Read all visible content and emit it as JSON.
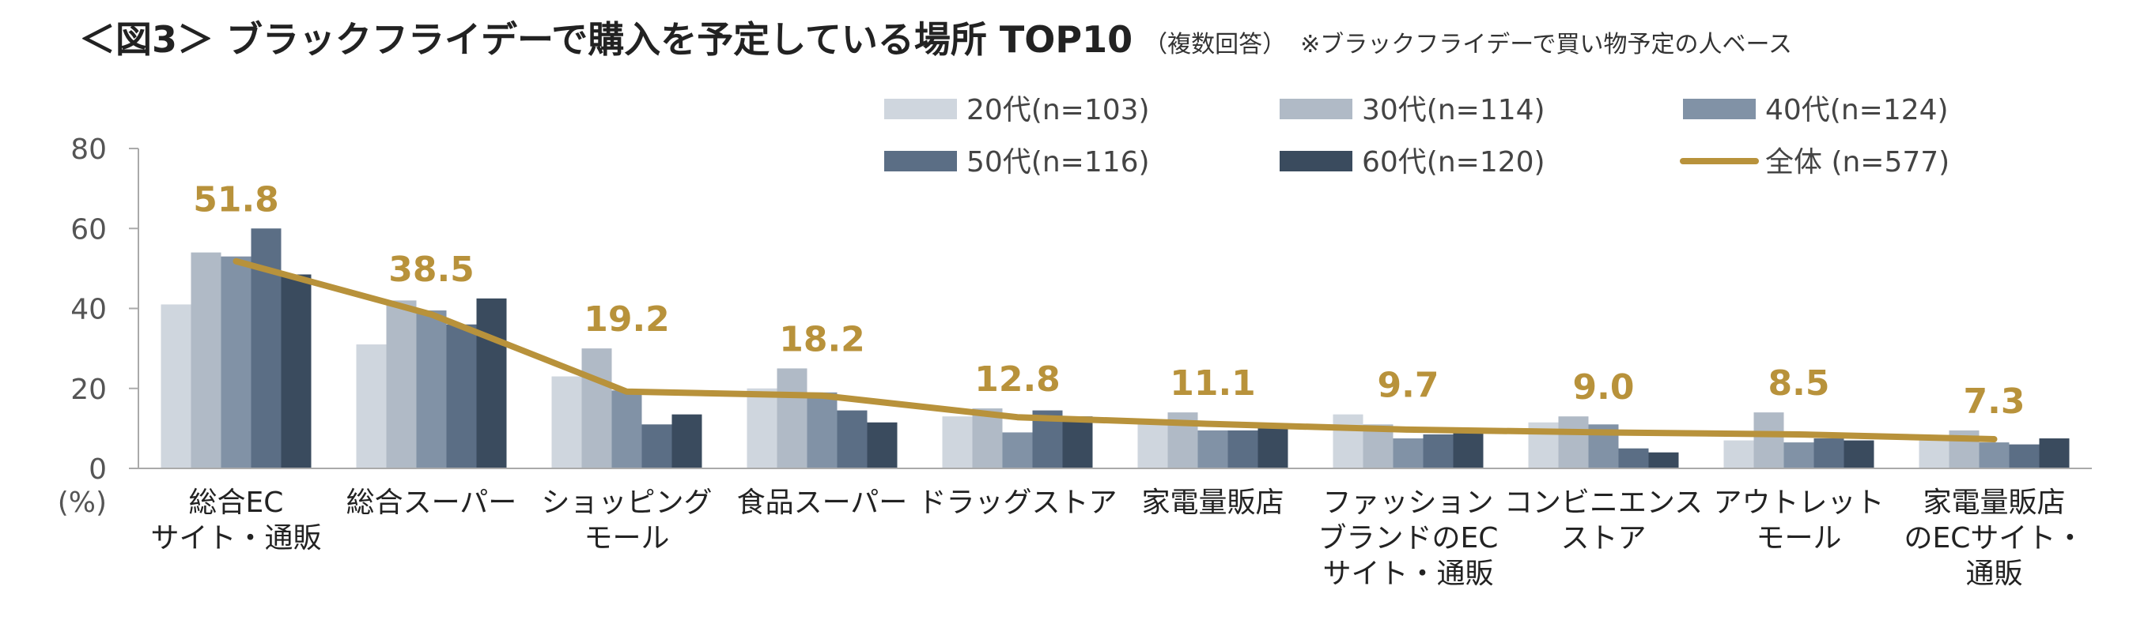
{
  "title": {
    "main": "＜図3＞ ブラックフライデーで購入を予定している場所 TOP10",
    "sub": "（複数回答）",
    "note": "※ブラックフライデーで買い物予定の人ベース"
  },
  "colors": {
    "s20": "#CFD6DE",
    "s30": "#B0BAC6",
    "s40": "#8192A6",
    "s50": "#5B6E85",
    "s60": "#3A4B5E",
    "total": "#B8923B",
    "axis": "#AAAAAA"
  },
  "chart_data": {
    "type": "bar",
    "unit_label": "(%)",
    "ylim": [
      0,
      80
    ],
    "yticks": [
      0,
      20,
      40,
      60,
      80
    ],
    "grid": false,
    "legend_position": "top-right",
    "categories": [
      [
        "総合EC",
        "サイト・通販"
      ],
      [
        "総合スーパー"
      ],
      [
        "ショッピング",
        "モール"
      ],
      [
        "食品スーパー"
      ],
      [
        "ドラッグストア"
      ],
      [
        "家電量販店"
      ],
      [
        "ファッション",
        "ブランドのEC",
        "サイト・通販"
      ],
      [
        "コンビニエンス",
        "ストア"
      ],
      [
        "アウトレット",
        "モール"
      ],
      [
        "家電量販店",
        "のECサイト・",
        "通販"
      ]
    ],
    "series": [
      {
        "name": "20代(n=103)",
        "color_key": "s20",
        "values": [
          41,
          31,
          23,
          20,
          13,
          11,
          13.5,
          11.5,
          7,
          7
        ]
      },
      {
        "name": "30代(n=114)",
        "color_key": "s30",
        "values": [
          54,
          42,
          30,
          25,
          15,
          14,
          11,
          13,
          14,
          9.5
        ]
      },
      {
        "name": "40代(n=124)",
        "color_key": "s40",
        "values": [
          53,
          39.5,
          19.5,
          19,
          9,
          9.5,
          7.5,
          11,
          6.5,
          6.5
        ]
      },
      {
        "name": "50代(n=116)",
        "color_key": "s50",
        "values": [
          60,
          36,
          11,
          14.5,
          14.5,
          9.5,
          8.5,
          5,
          7.5,
          6
        ]
      },
      {
        "name": "60代(n=120)",
        "color_key": "s60",
        "values": [
          48.5,
          42.5,
          13.5,
          11.5,
          13,
          10,
          9,
          4,
          7,
          7.5
        ]
      }
    ],
    "line": {
      "name": "全体 (n=577)",
      "color_key": "total",
      "values": [
        51.8,
        38.5,
        19.2,
        18.2,
        12.8,
        11.1,
        9.7,
        9.0,
        8.5,
        7.3
      ],
      "labels": [
        "51.8",
        "38.5",
        "19.2",
        "18.2",
        "12.8",
        "11.1",
        "9.7",
        "9.0",
        "8.5",
        "7.3"
      ]
    }
  }
}
